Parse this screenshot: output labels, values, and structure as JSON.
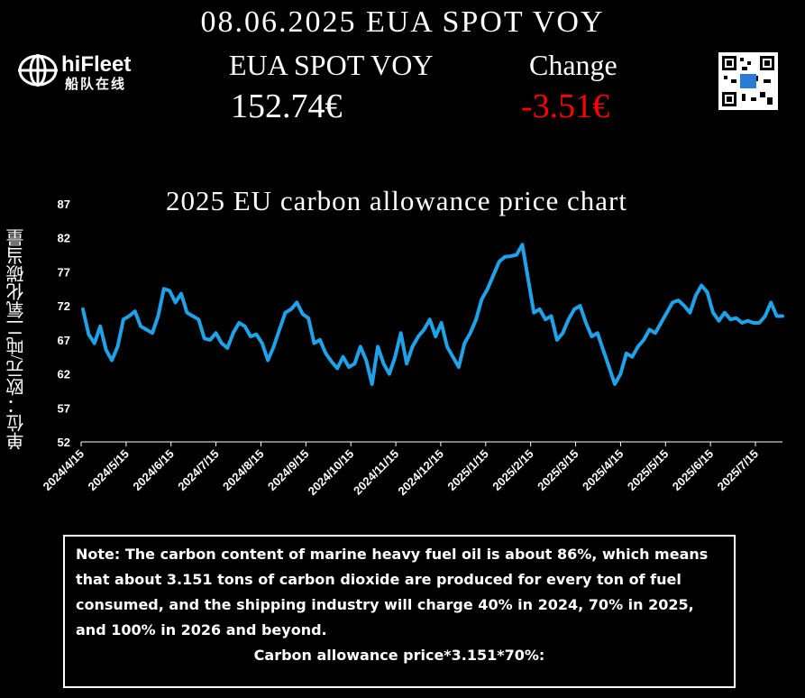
{
  "header": {
    "title": "08.06.2025 EUA SPOT VOY",
    "product_label": "EUA SPOT VOY",
    "change_label": "Change",
    "price": "152.74€",
    "change": "-3.51€",
    "change_color": "#ff0000"
  },
  "logo": {
    "name": "hiFleet",
    "subtitle": "船队在线"
  },
  "note": {
    "text": "Note: The carbon content of marine heavy fuel oil is about 86%, which means that about 3.151 tons of carbon dioxide are produced for every ton of fuel consumed, and the shipping industry will charge 40% in 2024, 70% in 2025, and 100% in 2026 and beyond.",
    "formula": "Carbon allowance price*3.151*70%:"
  },
  "chart_data": {
    "type": "line",
    "title": "2025 EU carbon allowance price chart",
    "xlabel": "",
    "ylabel": "单位：欧元/吨二氧化碳当量",
    "ylim": [
      52,
      87
    ],
    "yticks": [
      52,
      57,
      62,
      67,
      72,
      77,
      82,
      87
    ],
    "x_tick_labels": [
      "2024/4/15",
      "2024/5/15",
      "2024/6/15",
      "2024/7/15",
      "2024/8/15",
      "2024/9/15",
      "2024/10/15",
      "2024/11/15",
      "2024/12/15",
      "2025/1/15",
      "2025/2/15",
      "2025/3/15",
      "2025/4/15",
      "2025/5/15",
      "2025/6/15",
      "2025/7/15"
    ],
    "line_color": "#1fa2e8",
    "grid": false,
    "series": [
      {
        "values": [
          71.5,
          67.8,
          66.5,
          69,
          65.5,
          64,
          66,
          70,
          70.5,
          71.2,
          69,
          68.5,
          68,
          70.5,
          74.5,
          74.2,
          72.5,
          73.8,
          71,
          70.5,
          70,
          67.2,
          67,
          68,
          66.5,
          65.8,
          68,
          69.5,
          69,
          67.5,
          67.8,
          66.5,
          64,
          66,
          68.5,
          71,
          71.5,
          72.5,
          70.8,
          70.2,
          66.5,
          67,
          65,
          63.8,
          62.8,
          64.5,
          63,
          63.5,
          66,
          64,
          60.5,
          66,
          63.5,
          62,
          64.5,
          68,
          63.5,
          66,
          67.5,
          68.5,
          70,
          67.5,
          69.5,
          66,
          64.5,
          63,
          66.5,
          68,
          70,
          73,
          74.5,
          76.5,
          78.5,
          79.2,
          79.3,
          79.5,
          81,
          76,
          71,
          71.5,
          70,
          70.5,
          67,
          68,
          70,
          71.5,
          72,
          69.5,
          67.5,
          68,
          65.5,
          63,
          60.5,
          62,
          65,
          64.5,
          66,
          67,
          68.5,
          68,
          69.5,
          71,
          72.5,
          72.8,
          72,
          71,
          73.5,
          75,
          74,
          71,
          69.8,
          71,
          70,
          70.2,
          69.5,
          69.8,
          69.5,
          69.5,
          70.5,
          72.5,
          70.5,
          70.5
        ]
      }
    ]
  }
}
